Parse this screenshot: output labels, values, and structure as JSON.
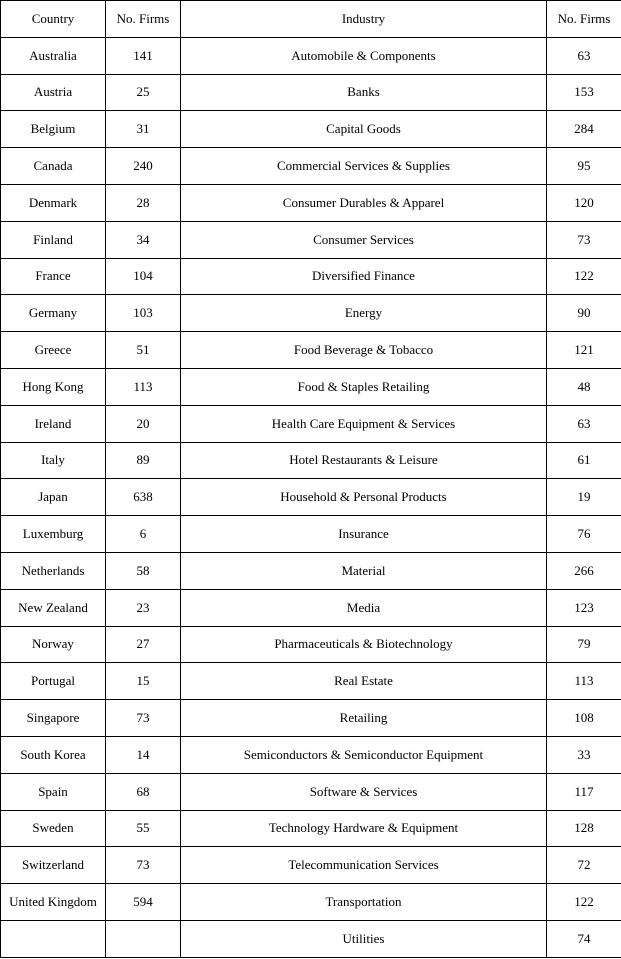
{
  "table": {
    "headers": {
      "country": "Country",
      "firms1": "No. Firms",
      "industry": "Industry",
      "firms2": "No. Firms"
    },
    "rows": [
      {
        "country": "Australia",
        "firms1": "141",
        "industry": "Automobile & Components",
        "firms2": "63"
      },
      {
        "country": "Austria",
        "firms1": "25",
        "industry": "Banks",
        "firms2": "153"
      },
      {
        "country": "Belgium",
        "firms1": "31",
        "industry": "Capital Goods",
        "firms2": "284"
      },
      {
        "country": "Canada",
        "firms1": "240",
        "industry": "Commercial Services & Supplies",
        "firms2": "95"
      },
      {
        "country": "Denmark",
        "firms1": "28",
        "industry": "Consumer Durables & Apparel",
        "firms2": "120"
      },
      {
        "country": "Finland",
        "firms1": "34",
        "industry": "Consumer Services",
        "firms2": "73"
      },
      {
        "country": "France",
        "firms1": "104",
        "industry": "Diversified Finance",
        "firms2": "122"
      },
      {
        "country": "Germany",
        "firms1": "103",
        "industry": "Energy",
        "firms2": "90"
      },
      {
        "country": "Greece",
        "firms1": "51",
        "industry": "Food Beverage & Tobacco",
        "firms2": "121"
      },
      {
        "country": "Hong Kong",
        "firms1": "113",
        "industry": "Food & Staples Retailing",
        "firms2": "48"
      },
      {
        "country": "Ireland",
        "firms1": "20",
        "industry": "Health Care Equipment & Services",
        "firms2": "63"
      },
      {
        "country": "Italy",
        "firms1": "89",
        "industry": "Hotel Restaurants & Leisure",
        "firms2": "61"
      },
      {
        "country": "Japan",
        "firms1": "638",
        "industry": "Household & Personal Products",
        "firms2": "19"
      },
      {
        "country": "Luxemburg",
        "firms1": "6",
        "industry": "Insurance",
        "firms2": "76"
      },
      {
        "country": "Netherlands",
        "firms1": "58",
        "industry": "Material",
        "firms2": "266"
      },
      {
        "country": "New Zealand",
        "firms1": "23",
        "industry": "Media",
        "firms2": "123"
      },
      {
        "country": "Norway",
        "firms1": "27",
        "industry": "Pharmaceuticals & Biotechnology",
        "firms2": "79"
      },
      {
        "country": "Portugal",
        "firms1": "15",
        "industry": "Real Estate",
        "firms2": "113"
      },
      {
        "country": "Singapore",
        "firms1": "73",
        "industry": "Retailing",
        "firms2": "108"
      },
      {
        "country": "South Korea",
        "firms1": "14",
        "industry": "Semiconductors & Semiconductor Equipment",
        "firms2": "33"
      },
      {
        "country": "Spain",
        "firms1": "68",
        "industry": "Software & Services",
        "firms2": "117"
      },
      {
        "country": "Sweden",
        "firms1": "55",
        "industry": "Technology Hardware & Equipment",
        "firms2": "128"
      },
      {
        "country": "Switzerland",
        "firms1": "73",
        "industry": "Telecommunication Services",
        "firms2": "72"
      },
      {
        "country": "United Kingdom",
        "firms1": "594",
        "industry": "Transportation",
        "firms2": "122"
      },
      {
        "country": "",
        "firms1": "",
        "industry": "Utilities",
        "firms2": "74"
      }
    ]
  }
}
